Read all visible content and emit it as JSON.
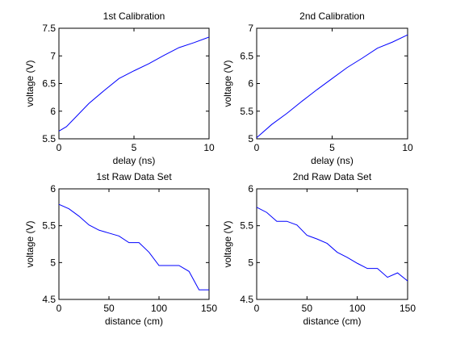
{
  "chart_data": [
    {
      "type": "line",
      "title": "1st Calibration",
      "xlabel": "delay (ns)",
      "ylabel": "voltage (V)",
      "xlim": [
        0,
        10
      ],
      "ylim": [
        5.5,
        7.5
      ],
      "x_ticks": [
        0,
        5,
        10
      ],
      "x_tick_labels": [
        "0",
        "5",
        "10"
      ],
      "y_ticks": [
        5.5,
        6,
        6.5,
        7,
        7.5
      ],
      "y_tick_labels": [
        "5.5",
        "6",
        "6.5",
        "7",
        "7.5"
      ],
      "grid": false,
      "series": [
        {
          "color": "#0000ff",
          "x": [
            0,
            0.5,
            1,
            2,
            3,
            4,
            5,
            6,
            7,
            8,
            9,
            10
          ],
          "y": [
            5.64,
            5.72,
            5.86,
            6.14,
            6.37,
            6.59,
            6.73,
            6.86,
            7.01,
            7.15,
            7.24,
            7.34
          ]
        }
      ]
    },
    {
      "type": "line",
      "title": "2nd Calibration",
      "xlabel": "delay (ns)",
      "ylabel": "voltage (V)",
      "xlim": [
        0,
        10
      ],
      "ylim": [
        5,
        7
      ],
      "x_ticks": [
        0,
        5,
        10
      ],
      "x_tick_labels": [
        "0",
        "5",
        "10"
      ],
      "y_ticks": [
        5,
        5.5,
        6,
        6.5,
        7
      ],
      "y_tick_labels": [
        "5",
        "5.5",
        "6",
        "6.5",
        "7"
      ],
      "grid": false,
      "series": [
        {
          "color": "#0000ff",
          "x": [
            0,
            1,
            2,
            3,
            4,
            5,
            6,
            7,
            8,
            9,
            10
          ],
          "y": [
            5.02,
            5.26,
            5.46,
            5.68,
            5.89,
            6.09,
            6.29,
            6.46,
            6.64,
            6.75,
            6.88
          ]
        }
      ]
    },
    {
      "type": "line",
      "title": "1st Raw Data Set",
      "xlabel": "distance (cm)",
      "ylabel": "voltage (V)",
      "xlim": [
        0,
        150
      ],
      "ylim": [
        4.5,
        6
      ],
      "x_ticks": [
        0,
        50,
        100,
        150
      ],
      "x_tick_labels": [
        "0",
        "50",
        "100",
        "150"
      ],
      "y_ticks": [
        4.5,
        5,
        5.5,
        6
      ],
      "y_tick_labels": [
        "4.5",
        "5",
        "5.5",
        "6"
      ],
      "grid": false,
      "series": [
        {
          "color": "#0000ff",
          "x": [
            0,
            10,
            20,
            30,
            40,
            50,
            60,
            70,
            80,
            90,
            100,
            110,
            120,
            130,
            140,
            150
          ],
          "y": [
            5.79,
            5.73,
            5.63,
            5.51,
            5.44,
            5.4,
            5.36,
            5.27,
            5.27,
            5.14,
            4.96,
            4.96,
            4.96,
            4.88,
            4.63,
            4.63
          ]
        }
      ]
    },
    {
      "type": "line",
      "title": "2nd Raw Data Set",
      "xlabel": "distance (cm)",
      "ylabel": "voltage (V)",
      "xlim": [
        0,
        150
      ],
      "ylim": [
        4.5,
        6
      ],
      "x_ticks": [
        0,
        50,
        100,
        150
      ],
      "x_tick_labels": [
        "0",
        "50",
        "100",
        "150"
      ],
      "y_ticks": [
        4.5,
        5,
        5.5,
        6
      ],
      "y_tick_labels": [
        "4.5",
        "5",
        "5.5",
        "6"
      ],
      "grid": false,
      "series": [
        {
          "color": "#0000ff",
          "x": [
            0,
            10,
            20,
            30,
            40,
            50,
            60,
            70,
            80,
            90,
            100,
            110,
            120,
            130,
            140,
            150
          ],
          "y": [
            5.75,
            5.68,
            5.56,
            5.56,
            5.51,
            5.37,
            5.32,
            5.26,
            5.14,
            5.07,
            4.99,
            4.92,
            4.92,
            4.8,
            4.86,
            4.75
          ]
        }
      ]
    }
  ]
}
